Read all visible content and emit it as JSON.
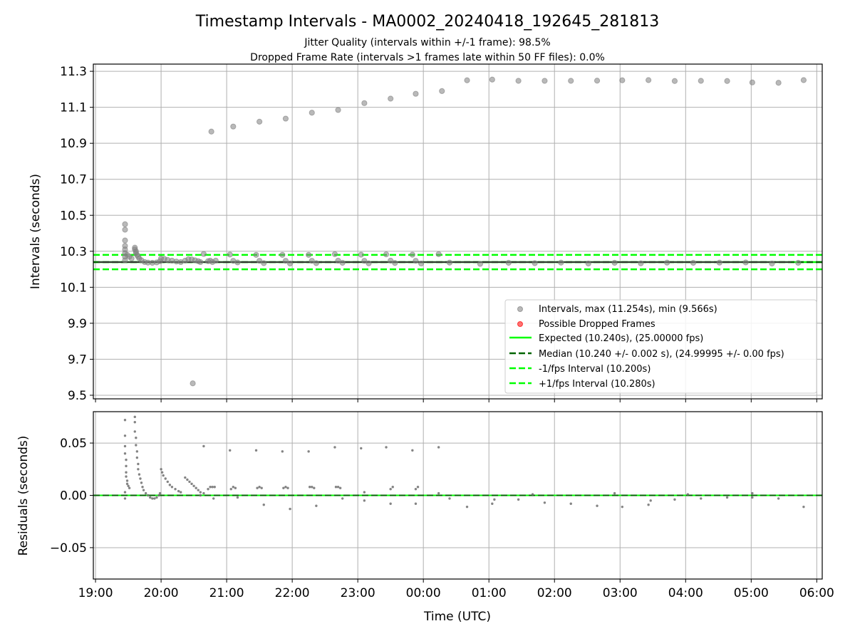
{
  "title": "Timestamp Intervals - MA0002_20240418_192645_281813",
  "subtitle_1": "Jitter Quality (intervals within +/-1 frame): 98.5%",
  "subtitle_2": "Dropped Frame Rate (intervals >1 frames late within 50 FF files): 0.0%",
  "colors": {
    "points": "#808080",
    "dropped": "#ff0000",
    "expected": "#00ff00",
    "median": "#006400",
    "interval_band": "#00ff00",
    "grid": "#b0b0b0"
  },
  "chart_data": [
    {
      "type": "scatter",
      "panel": "intervals",
      "ylabel": "Intervals (seconds)",
      "xlim": [
        "18:58",
        "06:05"
      ],
      "ylim": [
        9.48,
        11.34
      ],
      "yticks": [
        "9.5",
        "9.7",
        "9.9",
        "10.1",
        "10.3",
        "10.5",
        "10.7",
        "10.9",
        "11.1",
        "11.3"
      ],
      "grid": true,
      "legend_position": "lower-right",
      "legend": [
        {
          "label": "Intervals, max (11.254s), min (9.566s)",
          "style": "marker",
          "color": "#808080"
        },
        {
          "label": "Possible Dropped Frames",
          "style": "marker",
          "color": "#ff0000"
        },
        {
          "label": "Expected (10.240s), (25.00000 fps)",
          "style": "solid",
          "color": "#00ff00"
        },
        {
          "label": "Median (10.240 +/- 0.002 s), (24.99995 +/- 0.00 fps)",
          "style": "dashed",
          "color": "#006400"
        },
        {
          "label": "-1/fps Interval (10.200s)",
          "style": "dashed",
          "color": "#00ff00"
        },
        {
          "label": "+1/fps Interval (10.280s)",
          "style": "dashed",
          "color": "#00ff00"
        }
      ],
      "reference_lines": {
        "expected": 10.24,
        "median": 10.24,
        "minus_1fps": 10.2,
        "plus_1fps": 10.28
      },
      "max": 11.254,
      "min": 9.566,
      "series": [
        {
          "name": "Intervals",
          "points": [
            [
              "19:27",
              10.45
            ],
            [
              "19:27",
              10.42
            ],
            [
              "19:27",
              10.36
            ],
            [
              "19:27",
              10.33
            ],
            [
              "19:27",
              10.31
            ],
            [
              "19:27",
              10.29
            ],
            [
              "19:27",
              10.27
            ],
            [
              "19:27",
              10.25
            ],
            [
              "19:29",
              10.28
            ],
            [
              "19:31",
              10.27
            ],
            [
              "19:33",
              10.26
            ],
            [
              "19:36",
              10.32
            ],
            [
              "19:36",
              10.31
            ],
            [
              "19:37",
              10.3
            ],
            [
              "19:37",
              10.29
            ],
            [
              "19:38",
              10.28
            ],
            [
              "19:39",
              10.27
            ],
            [
              "19:40",
              10.26
            ],
            [
              "19:42",
              10.25
            ],
            [
              "19:45",
              10.24
            ],
            [
              "19:48",
              10.237
            ],
            [
              "19:52",
              10.236
            ],
            [
              "19:56",
              10.238
            ],
            [
              "19:59",
              10.245
            ],
            [
              "20:00",
              10.26
            ],
            [
              "20:03",
              10.257
            ],
            [
              "20:06",
              10.252
            ],
            [
              "20:10",
              10.248
            ],
            [
              "20:14",
              10.243
            ],
            [
              "20:18",
              10.24
            ],
            [
              "20:22",
              10.248
            ],
            [
              "20:25",
              10.256
            ],
            [
              "20:28",
              10.255
            ],
            [
              "20:31",
              10.25
            ],
            [
              "20:34",
              10.245
            ],
            [
              "20:36",
              10.24
            ],
            [
              "20:29",
              9.566
            ],
            [
              "20:39",
              10.285
            ],
            [
              "20:43",
              10.245
            ],
            [
              "20:45",
              10.248
            ],
            [
              "20:47",
              10.24
            ],
            [
              "20:50",
              10.248
            ],
            [
              "20:46",
              10.965
            ],
            [
              "21:06",
              10.993
            ],
            [
              "21:30",
              11.02
            ],
            [
              "21:54",
              11.037
            ],
            [
              "22:18",
              11.07
            ],
            [
              "22:42",
              11.085
            ],
            [
              "23:06",
              11.123
            ],
            [
              "23:30",
              11.148
            ],
            [
              "23:53",
              11.175
            ],
            [
              "00:17",
              11.19
            ],
            [
              "00:40",
              11.25
            ],
            [
              "01:03",
              11.254
            ],
            [
              "01:27",
              11.247
            ],
            [
              "01:51",
              11.247
            ],
            [
              "02:15",
              11.247
            ],
            [
              "02:39",
              11.248
            ],
            [
              "03:02",
              11.25
            ],
            [
              "03:26",
              11.251
            ],
            [
              "03:50",
              11.246
            ],
            [
              "04:14",
              11.247
            ],
            [
              "04:38",
              11.246
            ],
            [
              "05:01",
              11.238
            ],
            [
              "05:25",
              11.236
            ],
            [
              "05:48",
              11.251
            ],
            [
              "21:03",
              10.282
            ],
            [
              "21:27",
              10.28
            ],
            [
              "21:51",
              10.28
            ],
            [
              "22:15",
              10.28
            ],
            [
              "22:39",
              10.284
            ],
            [
              "23:03",
              10.281
            ],
            [
              "23:26",
              10.283
            ],
            [
              "23:50",
              10.281
            ],
            [
              "00:14",
              10.284
            ],
            [
              "21:06",
              10.247
            ],
            [
              "21:30",
              10.247
            ],
            [
              "21:54",
              10.247
            ],
            [
              "22:18",
              10.247
            ],
            [
              "22:42",
              10.248
            ],
            [
              "23:06",
              10.247
            ],
            [
              "23:30",
              10.248
            ],
            [
              "23:53",
              10.247
            ],
            [
              "21:10",
              10.238
            ],
            [
              "21:34",
              10.234
            ],
            [
              "21:58",
              10.232
            ],
            [
              "22:22",
              10.234
            ],
            [
              "22:46",
              10.236
            ],
            [
              "23:10",
              10.233
            ],
            [
              "23:34",
              10.235
            ],
            [
              "23:58",
              10.232
            ],
            [
              "00:24",
              10.237
            ],
            [
              "00:52",
              10.23
            ],
            [
              "01:18",
              10.236
            ],
            [
              "01:42",
              10.234
            ],
            [
              "02:06",
              10.237
            ],
            [
              "02:31",
              10.232
            ],
            [
              "02:55",
              10.236
            ],
            [
              "03:19",
              10.233
            ],
            [
              "03:43",
              10.237
            ],
            [
              "04:07",
              10.236
            ],
            [
              "04:31",
              10.237
            ],
            [
              "04:55",
              10.238
            ],
            [
              "05:19",
              10.232
            ],
            [
              "05:43",
              10.236
            ]
          ]
        }
      ]
    },
    {
      "type": "scatter",
      "panel": "residuals",
      "xlabel": "Time (UTC)",
      "ylabel": "Residuals (seconds)",
      "xticks": [
        "19:00",
        "20:00",
        "21:00",
        "22:00",
        "23:00",
        "00:00",
        "01:00",
        "02:00",
        "03:00",
        "04:00",
        "05:00",
        "06:00"
      ],
      "yticks": [
        "−0.05",
        "0.00",
        "0.05"
      ],
      "ylim": [
        -0.08,
        0.08
      ],
      "grid": true,
      "reference_lines": {
        "expected": 0.0,
        "median": 0.0
      },
      "series": [
        {
          "name": "Residuals",
          "points": [
            [
              "19:27",
              0.072
            ],
            [
              "19:27",
              0.057
            ],
            [
              "19:27",
              0.047
            ],
            [
              "19:27",
              0.04
            ],
            [
              "19:28",
              0.034
            ],
            [
              "19:28",
              0.028
            ],
            [
              "19:28",
              0.022
            ],
            [
              "19:28",
              0.018
            ],
            [
              "19:29",
              0.014
            ],
            [
              "19:29",
              0.011
            ],
            [
              "19:30",
              0.009
            ],
            [
              "19:31",
              0.007
            ],
            [
              "19:27",
              0.003
            ],
            [
              "19:27",
              -0.003
            ],
            [
              "19:36",
              0.075
            ],
            [
              "19:36",
              0.07
            ],
            [
              "19:36",
              0.061
            ],
            [
              "19:37",
              0.055
            ],
            [
              "19:37",
              0.048
            ],
            [
              "19:38",
              0.042
            ],
            [
              "19:38",
              0.036
            ],
            [
              "19:39",
              0.03
            ],
            [
              "19:39",
              0.025
            ],
            [
              "19:40",
              0.02
            ],
            [
              "19:41",
              0.016
            ],
            [
              "19:42",
              0.012
            ],
            [
              "19:43",
              0.008
            ],
            [
              "19:44",
              0.005
            ],
            [
              "19:46",
              0.002
            ],
            [
              "19:48",
              0.0
            ],
            [
              "19:50",
              -0.002
            ],
            [
              "19:52",
              -0.003
            ],
            [
              "19:54",
              -0.003
            ],
            [
              "19:56",
              -0.002
            ],
            [
              "19:58",
              0.0
            ],
            [
              "19:59",
              0.002
            ],
            [
              "20:00",
              0.025
            ],
            [
              "20:01",
              0.022
            ],
            [
              "20:02",
              0.019
            ],
            [
              "20:04",
              0.016
            ],
            [
              "20:06",
              0.013
            ],
            [
              "20:08",
              0.01
            ],
            [
              "20:10",
              0.008
            ],
            [
              "20:13",
              0.006
            ],
            [
              "20:16",
              0.004
            ],
            [
              "20:18",
              0.003
            ],
            [
              "20:22",
              0.017
            ],
            [
              "20:24",
              0.015
            ],
            [
              "20:26",
              0.013
            ],
            [
              "20:28",
              0.011
            ],
            [
              "20:30",
              0.009
            ],
            [
              "20:32",
              0.007
            ],
            [
              "20:34",
              0.005
            ],
            [
              "20:36",
              0.003
            ],
            [
              "20:36",
              0.0
            ],
            [
              "20:39",
              0.002
            ],
            [
              "20:43",
              0.006
            ],
            [
              "20:45",
              0.008
            ],
            [
              "20:47",
              0.008
            ],
            [
              "20:49",
              0.008
            ],
            [
              "20:39",
              0.047
            ],
            [
              "20:48",
              -0.003
            ],
            [
              "21:03",
              0.043
            ],
            [
              "21:27",
              0.043
            ],
            [
              "21:51",
              0.042
            ],
            [
              "22:15",
              0.042
            ],
            [
              "22:39",
              0.046
            ],
            [
              "23:03",
              0.045
            ],
            [
              "23:26",
              0.046
            ],
            [
              "23:50",
              0.043
            ],
            [
              "00:14",
              0.046
            ],
            [
              "21:04",
              0.006
            ],
            [
              "21:06",
              0.008
            ],
            [
              "21:08",
              0.007
            ],
            [
              "21:28",
              0.007
            ],
            [
              "21:30",
              0.008
            ],
            [
              "21:32",
              0.007
            ],
            [
              "21:52",
              0.007
            ],
            [
              "21:54",
              0.008
            ],
            [
              "21:56",
              0.007
            ],
            [
              "22:16",
              0.008
            ],
            [
              "22:18",
              0.008
            ],
            [
              "22:20",
              0.007
            ],
            [
              "22:40",
              0.008
            ],
            [
              "22:42",
              0.008
            ],
            [
              "22:44",
              0.007
            ],
            [
              "23:06",
              0.003
            ],
            [
              "23:30",
              0.006
            ],
            [
              "23:32",
              0.008
            ],
            [
              "23:53",
              0.006
            ],
            [
              "23:55",
              0.008
            ],
            [
              "21:10",
              -0.002
            ],
            [
              "21:34",
              -0.009
            ],
            [
              "21:58",
              -0.013
            ],
            [
              "22:22",
              -0.01
            ],
            [
              "22:46",
              -0.003
            ],
            [
              "23:06",
              -0.005
            ],
            [
              "23:30",
              -0.008
            ],
            [
              "23:53",
              -0.008
            ],
            [
              "00:24",
              -0.003
            ],
            [
              "00:40",
              -0.011
            ],
            [
              "01:03",
              -0.008
            ],
            [
              "01:05",
              -0.004
            ],
            [
              "01:27",
              -0.004
            ],
            [
              "01:51",
              -0.007
            ],
            [
              "02:15",
              -0.008
            ],
            [
              "02:39",
              -0.01
            ],
            [
              "03:02",
              -0.011
            ],
            [
              "03:26",
              -0.009
            ],
            [
              "03:28",
              -0.005
            ],
            [
              "03:50",
              -0.004
            ],
            [
              "04:14",
              -0.003
            ],
            [
              "04:38",
              -0.002
            ],
            [
              "05:01",
              -0.002
            ],
            [
              "05:25",
              -0.003
            ],
            [
              "05:48",
              -0.011
            ],
            [
              "00:14",
              0.002
            ],
            [
              "01:40",
              0.001
            ],
            [
              "02:55",
              0.002
            ],
            [
              "04:02",
              0.001
            ],
            [
              "05:01",
              0.002
            ]
          ]
        }
      ]
    }
  ]
}
